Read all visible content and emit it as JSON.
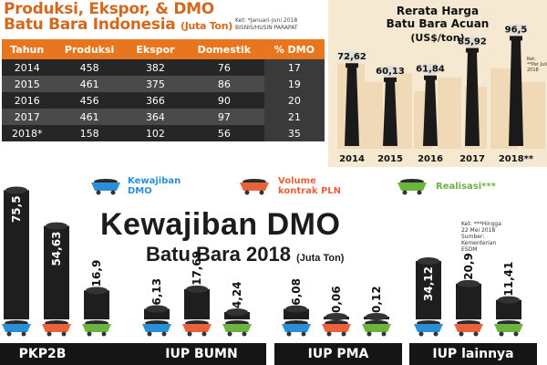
{
  "table_section": {
    "title_line1": "Produksi, Ekspor, & DMO",
    "title_line2": "Batu Bara Indonesia",
    "unit": "(Juta Ton)",
    "source_line1": "Ket: *Januari-Juni 2018",
    "source_line2": "BISNIS/HUSIN PARAPAT",
    "headers": [
      "Tahun",
      "Produksi",
      "Ekspor",
      "Domestik",
      "% DMO"
    ],
    "rows": [
      [
        "2014",
        "458",
        "382",
        "76",
        "17"
      ],
      [
        "2015",
        "461",
        "375",
        "86",
        "19"
      ],
      [
        "2016",
        "456",
        "366",
        "90",
        "20"
      ],
      [
        "2017",
        "461",
        "364",
        "97",
        "21"
      ],
      [
        "2018*",
        "158",
        "102",
        "56",
        "35"
      ]
    ]
  },
  "hba_section": {
    "title_line1": "Rerata Harga",
    "title_line2": "Batu Bara Acuan",
    "unit": "(US$/ton)",
    "note": "Ket: **Per Juli 2018"
  },
  "main_section": {
    "title_line1": "Kewajiban DMO",
    "title_line2": "Batu Bara 2018",
    "unit": "(Juta Ton)",
    "note_line1": "Ket: ***Hingga",
    "note_line2": "22 Mei 2018",
    "note_line3": "Sumber:",
    "note_line4": "Kementerian",
    "note_line5": "ESDM",
    "legend": [
      {
        "label_line1": "Kewajiban",
        "label_line2": "DMO",
        "color": "#2a8fd6"
      },
      {
        "label_line1": "Volume",
        "label_line2": "kontrak PLN",
        "color": "#e8623a"
      },
      {
        "label_line1": "Realisasi***",
        "label_line2": "",
        "color": "#6db33f"
      }
    ]
  },
  "chart_data": [
    {
      "type": "bar",
      "title": "Rerata Harga Batu Bara Acuan",
      "ylabel": "US$/ton",
      "categories": [
        "2014",
        "2015",
        "2016",
        "2017",
        "2018**"
      ],
      "values": [
        72.62,
        60.13,
        61.84,
        85.92,
        96.5
      ],
      "value_labels": [
        "72,62",
        "60,13",
        "61,84",
        "85,92",
        "96,5"
      ],
      "ylim": [
        0,
        100
      ]
    },
    {
      "type": "bar",
      "title": "Kewajiban DMO Batu Bara 2018",
      "ylabel": "Juta Ton",
      "categories": [
        "PKP2B",
        "IUP BUMN",
        "IUP PMA",
        "IUP lainnya"
      ],
      "series": [
        {
          "name": "Kewajiban DMO",
          "values": [
            75.5,
            6.13,
            6.08,
            34.12
          ],
          "labels": [
            "75,5",
            "6,13",
            "6,08",
            "34,12"
          ]
        },
        {
          "name": "Volume kontrak PLN",
          "values": [
            54.63,
            17.69,
            0.06,
            20.9
          ],
          "labels": [
            "54,63",
            "17,69",
            "0,06",
            "20,9"
          ]
        },
        {
          "name": "Realisasi***",
          "values": [
            16.9,
            4.24,
            0.12,
            11.41
          ],
          "labels": [
            "16,9",
            "4,24",
            "0,12",
            "11,41"
          ]
        }
      ],
      "ylim": [
        0,
        80
      ]
    }
  ]
}
